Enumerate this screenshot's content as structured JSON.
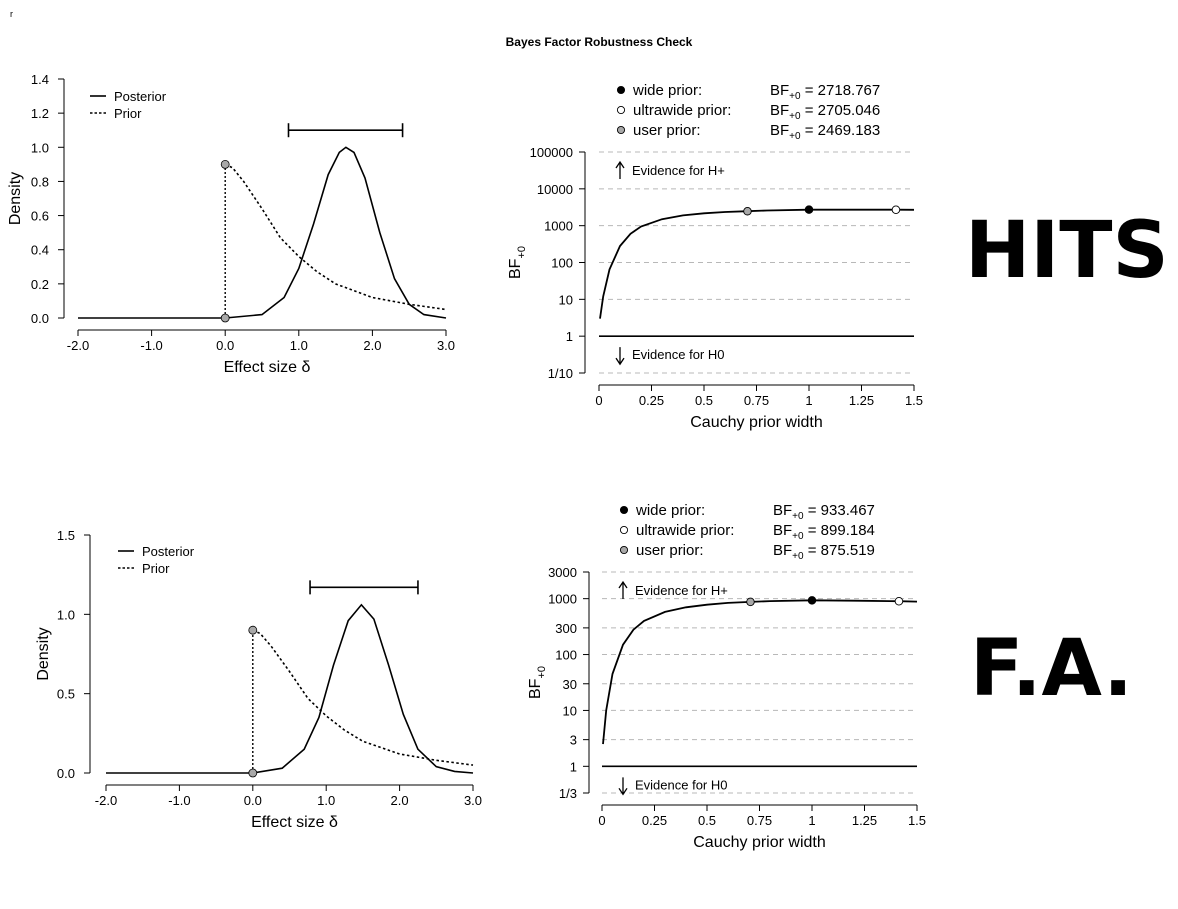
{
  "page": {
    "corner_mark": "r",
    "title": "Bayes Factor Robustness Check",
    "row_labels": [
      "HITS",
      "F.A."
    ]
  },
  "chart_data": [
    {
      "type": "line",
      "name": "hits-prior-posterior",
      "xlabel": "Effect size δ",
      "ylabel": "Density",
      "xlim": [
        -2,
        3
      ],
      "ylim": [
        0,
        1.4
      ],
      "x_ticks": [
        -2,
        -1,
        0,
        1,
        2,
        3
      ],
      "x_tick_labels": [
        "-2.0",
        "-1.0",
        "0.0",
        "1.0",
        "2.0",
        "3.0"
      ],
      "y_ticks": [
        0,
        0.2,
        0.4,
        0.6,
        0.8,
        1.0,
        1.2,
        1.4
      ],
      "y_tick_labels": [
        "0.0",
        "0.2",
        "0.4",
        "0.6",
        "0.8",
        "1.0",
        "1.2",
        "1.4"
      ],
      "legend": [
        "Posterior",
        "Prior"
      ],
      "legend_position": "top-left",
      "series": [
        {
          "name": "Posterior",
          "style": "solid",
          "x": [
            -2.0,
            0.0,
            0.5,
            0.8,
            1.0,
            1.2,
            1.4,
            1.55,
            1.64,
            1.75,
            1.9,
            2.1,
            2.3,
            2.5,
            2.7,
            3.0
          ],
          "y": [
            0.0,
            0.0,
            0.02,
            0.12,
            0.29,
            0.55,
            0.84,
            0.97,
            1.0,
            0.97,
            0.82,
            0.5,
            0.23,
            0.08,
            0.02,
            0.0
          ]
        },
        {
          "name": "Prior",
          "style": "dotted",
          "x": [
            0.0,
            0.1,
            0.25,
            0.5,
            0.75,
            1.0,
            1.25,
            1.5,
            2.0,
            2.5,
            3.0
          ],
          "y": [
            0.9,
            0.88,
            0.8,
            0.64,
            0.47,
            0.36,
            0.27,
            0.2,
            0.12,
            0.08,
            0.05
          ]
        }
      ],
      "prior_support_line": {
        "x": 0,
        "y_from": 0,
        "y_to": 0.9
      },
      "points": [
        {
          "x": 0,
          "y": 0.9
        },
        {
          "x": 0,
          "y": 0
        }
      ],
      "credible_interval": {
        "lower": 0.86,
        "upper": 2.41,
        "y": 1.1
      }
    },
    {
      "type": "line",
      "name": "hits-robustness",
      "xlabel": "Cauchy prior width",
      "ylabel": "BF+0",
      "scale": "log",
      "xlim": [
        0,
        1.5
      ],
      "ylim": [
        0.1,
        100000
      ],
      "x_ticks": [
        0,
        0.25,
        0.5,
        0.75,
        1,
        1.25,
        1.5
      ],
      "x_tick_labels": [
        "0",
        "0.25",
        "0.5",
        "0.75",
        "1",
        "1.25",
        "1.5"
      ],
      "y_ticks": [
        0.1,
        1,
        10,
        100,
        1000,
        10000,
        100000
      ],
      "y_tick_labels": [
        "1/10",
        "1",
        "10",
        "100",
        "1000",
        "10000",
        "100000"
      ],
      "grid": "dashed horizontal",
      "evidence_up": "Evidence for H+",
      "evidence_down": "Evidence for H0",
      "series": [
        {
          "name": "",
          "style": "solid",
          "x": [
            0.005,
            0.02,
            0.05,
            0.1,
            0.15,
            0.2,
            0.3,
            0.4,
            0.5,
            0.6,
            0.707,
            0.8,
            1.0,
            1.2,
            1.414,
            1.5
          ],
          "y": [
            3,
            12,
            65,
            280,
            600,
            950,
            1500,
            1900,
            2170,
            2350,
            2469,
            2580,
            2719,
            2714,
            2705,
            2690
          ]
        }
      ],
      "legend": [
        {
          "label": "wide prior:",
          "bf_label": "BF",
          "bf_sub": "+0",
          "value": "2718.767",
          "x": 1.0,
          "y": 2718.767,
          "marker": "#000000"
        },
        {
          "label": "ultrawide prior:",
          "bf_label": "BF",
          "bf_sub": "+0",
          "value": "2705.046",
          "x": 1.414,
          "y": 2705.046,
          "marker": "#ffffff"
        },
        {
          "label": "user prior:",
          "bf_label": "BF",
          "bf_sub": "+0",
          "value": "2469.183",
          "x": 0.707,
          "y": 2469.183,
          "marker": "#a8a8a8"
        }
      ]
    },
    {
      "type": "line",
      "name": "fa-prior-posterior",
      "xlabel": "Effect size δ",
      "ylabel": "Density",
      "xlim": [
        -2,
        3
      ],
      "ylim": [
        0,
        1.5
      ],
      "x_ticks": [
        -2,
        -1,
        0,
        1,
        2,
        3
      ],
      "x_tick_labels": [
        "-2.0",
        "-1.0",
        "0.0",
        "1.0",
        "2.0",
        "3.0"
      ],
      "y_ticks": [
        0,
        0.5,
        1.0,
        1.5
      ],
      "y_tick_labels": [
        "0.0",
        "0.5",
        "1.0",
        "1.5"
      ],
      "legend": [
        "Posterior",
        "Prior"
      ],
      "legend_position": "top-left",
      "series": [
        {
          "name": "Posterior",
          "style": "solid",
          "x": [
            -2.0,
            0.0,
            0.4,
            0.7,
            0.9,
            1.1,
            1.3,
            1.48,
            1.65,
            1.85,
            2.05,
            2.25,
            2.5,
            2.75,
            3.0
          ],
          "y": [
            0.0,
            0.0,
            0.03,
            0.15,
            0.35,
            0.68,
            0.96,
            1.06,
            0.97,
            0.68,
            0.37,
            0.15,
            0.04,
            0.01,
            0.0
          ]
        },
        {
          "name": "Prior",
          "style": "dotted",
          "x": [
            0.0,
            0.1,
            0.25,
            0.5,
            0.75,
            1.0,
            1.25,
            1.5,
            2.0,
            2.5,
            3.0
          ],
          "y": [
            0.9,
            0.88,
            0.8,
            0.64,
            0.47,
            0.36,
            0.27,
            0.2,
            0.12,
            0.08,
            0.05
          ]
        }
      ],
      "prior_support_line": {
        "x": 0,
        "y_from": 0,
        "y_to": 0.9
      },
      "points": [
        {
          "x": 0,
          "y": 0.9
        },
        {
          "x": 0,
          "y": 0
        }
      ],
      "credible_interval": {
        "lower": 0.78,
        "upper": 2.25,
        "y": 1.17
      }
    },
    {
      "type": "line",
      "name": "fa-robustness",
      "xlabel": "Cauchy prior width",
      "ylabel": "BF+0",
      "scale": "log",
      "xlim": [
        0,
        1.5
      ],
      "ylim": [
        0.333,
        3000
      ],
      "x_ticks": [
        0,
        0.25,
        0.5,
        0.75,
        1,
        1.25,
        1.5
      ],
      "x_tick_labels": [
        "0",
        "0.25",
        "0.5",
        "0.75",
        "1",
        "1.25",
        "1.5"
      ],
      "y_ticks": [
        0.333,
        1,
        3,
        10,
        30,
        100,
        300,
        1000,
        3000
      ],
      "y_tick_labels": [
        "1/3",
        "1",
        "3",
        "10",
        "30",
        "100",
        "300",
        "1000",
        "3000"
      ],
      "grid": "dashed horizontal",
      "evidence_up": "Evidence for H+",
      "evidence_down": "Evidence for H0",
      "series": [
        {
          "name": "",
          "style": "solid",
          "x": [
            0.005,
            0.02,
            0.05,
            0.1,
            0.15,
            0.2,
            0.3,
            0.4,
            0.5,
            0.6,
            0.707,
            0.8,
            1.0,
            1.2,
            1.414,
            1.5
          ],
          "y": [
            2.5,
            10,
            45,
            150,
            280,
            400,
            580,
            700,
            780,
            840,
            875.5,
            905,
            933.5,
            920,
            899.2,
            885
          ]
        }
      ],
      "legend": [
        {
          "label": "wide prior:",
          "bf_label": "BF",
          "bf_sub": "+0",
          "value": "933.467",
          "x": 1.0,
          "y": 933.467,
          "marker": "#000000"
        },
        {
          "label": "ultrawide prior:",
          "bf_label": "BF",
          "bf_sub": "+0",
          "value": "899.184",
          "x": 1.414,
          "y": 899.184,
          "marker": "#ffffff"
        },
        {
          "label": "user prior:",
          "bf_label": "BF",
          "bf_sub": "+0",
          "value": "875.519",
          "x": 0.707,
          "y": 875.519,
          "marker": "#a8a8a8"
        }
      ]
    }
  ]
}
